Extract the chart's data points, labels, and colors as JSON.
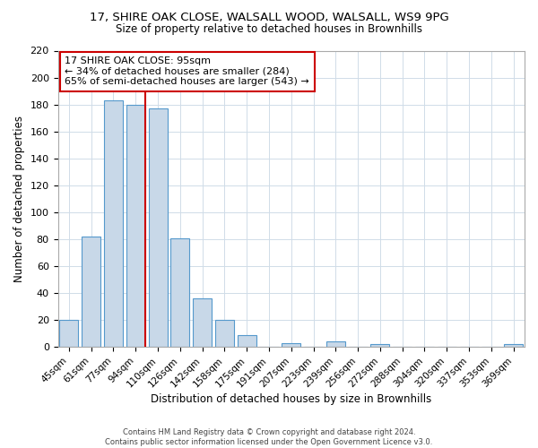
{
  "title": "17, SHIRE OAK CLOSE, WALSALL WOOD, WALSALL, WS9 9PG",
  "subtitle": "Size of property relative to detached houses in Brownhills",
  "xlabel": "Distribution of detached houses by size in Brownhills",
  "ylabel": "Number of detached properties",
  "bar_labels": [
    "45sqm",
    "61sqm",
    "77sqm",
    "94sqm",
    "110sqm",
    "126sqm",
    "142sqm",
    "158sqm",
    "175sqm",
    "191sqm",
    "207sqm",
    "223sqm",
    "239sqm",
    "256sqm",
    "272sqm",
    "288sqm",
    "304sqm",
    "320sqm",
    "337sqm",
    "353sqm",
    "369sqm"
  ],
  "bar_heights": [
    20,
    82,
    183,
    180,
    177,
    81,
    36,
    20,
    9,
    0,
    3,
    0,
    4,
    0,
    2,
    0,
    0,
    0,
    0,
    0,
    2
  ],
  "bar_color": "#c8d8e8",
  "bar_edge_color": "#5599cc",
  "property_line_color": "#cc0000",
  "annotation_title": "17 SHIRE OAK CLOSE: 95sqm",
  "annotation_line1": "← 34% of detached houses are smaller (284)",
  "annotation_line2": "65% of semi-detached houses are larger (543) →",
  "annotation_box_color": "#ffffff",
  "annotation_box_edge": "#cc0000",
  "ylim": [
    0,
    220
  ],
  "yticks": [
    0,
    20,
    40,
    60,
    80,
    100,
    120,
    140,
    160,
    180,
    200,
    220
  ],
  "footer1": "Contains HM Land Registry data © Crown copyright and database right 2024.",
  "footer2": "Contains public sector information licensed under the Open Government Licence v3.0.",
  "grid_color": "#d0dce8"
}
